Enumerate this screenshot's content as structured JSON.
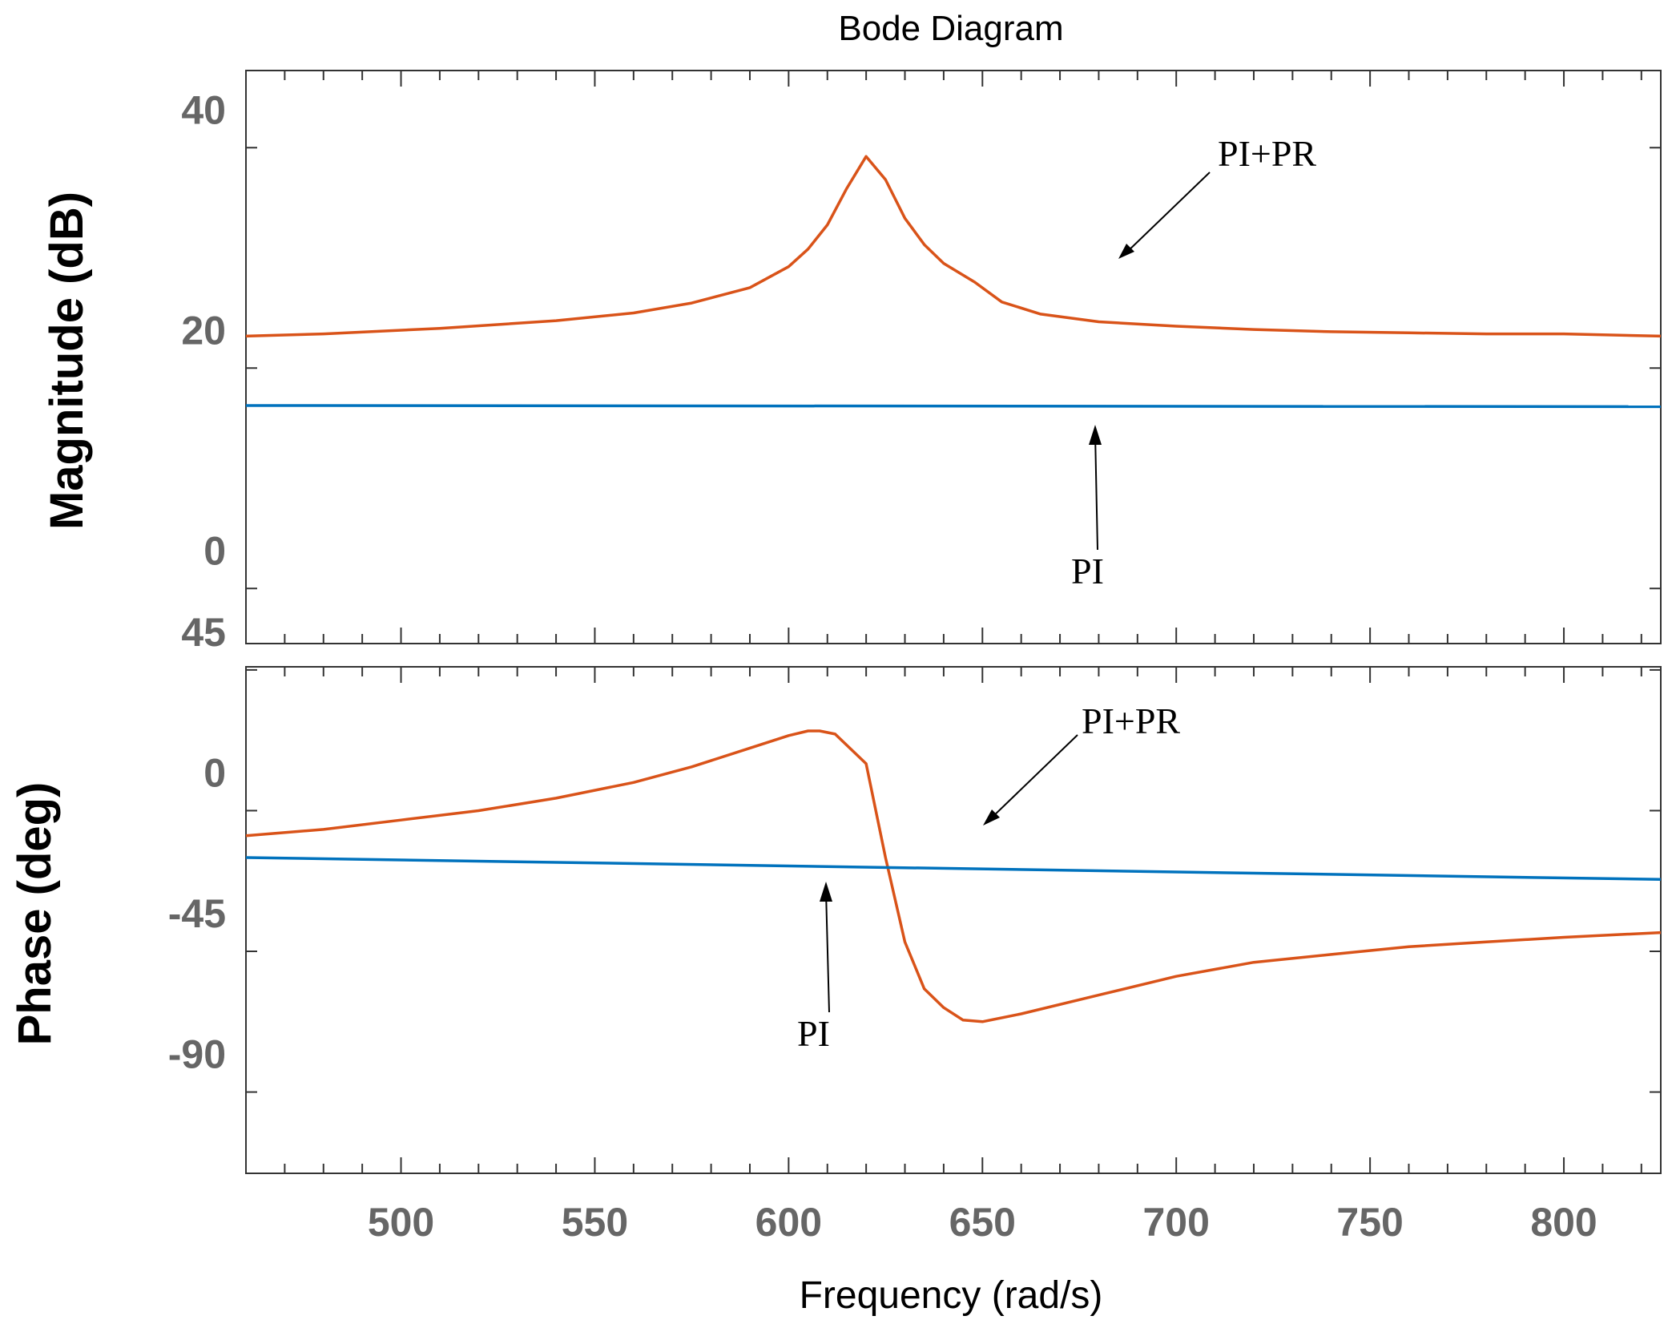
{
  "chart_data": [
    {
      "type": "line",
      "title": "Bode Diagram",
      "ylabel": "Magnitude (dB)",
      "xlim": [
        460,
        825
      ],
      "ylim": [
        -5,
        47
      ],
      "yticks": [
        0,
        20,
        40
      ],
      "series": [
        {
          "name": "PI+PR",
          "color": "#d95319",
          "x": [
            460,
            480,
            510,
            540,
            560,
            575,
            590,
            600,
            605,
            610,
            615,
            620,
            625,
            630,
            635,
            640,
            648,
            655,
            665,
            680,
            700,
            720,
            740,
            760,
            780,
            800,
            825
          ],
          "y": [
            22.9,
            23.1,
            23.6,
            24.3,
            25.0,
            25.9,
            27.3,
            29.2,
            30.8,
            33.0,
            36.3,
            39.2,
            37.1,
            33.6,
            31.2,
            29.5,
            27.8,
            26.0,
            24.9,
            24.2,
            23.8,
            23.5,
            23.3,
            23.2,
            23.1,
            23.1,
            22.9
          ],
          "label": "PI+PR"
        },
        {
          "name": "PI",
          "color": "#0072bd",
          "x": [
            460,
            825
          ],
          "y": [
            16.6,
            16.5
          ],
          "label": "PI"
        }
      ]
    },
    {
      "type": "line",
      "ylabel": "Phase (deg)",
      "xlabel": "Frequency (rad/s)",
      "xlim": [
        460,
        825
      ],
      "ylim": [
        -116,
        46
      ],
      "yticks": [
        -90,
        -45,
        0,
        45
      ],
      "xticks": [
        500,
        550,
        600,
        650,
        700,
        750,
        800
      ],
      "series": [
        {
          "name": "PI+PR",
          "color": "#d95319",
          "x": [
            460,
            480,
            500,
            520,
            540,
            560,
            575,
            590,
            600,
            605,
            608,
            612,
            620,
            625,
            630,
            635,
            640,
            645,
            650,
            660,
            680,
            700,
            720,
            740,
            760,
            780,
            800,
            825
          ],
          "y": [
            -8,
            -6,
            -3,
            0,
            4,
            9,
            14,
            20,
            24,
            25.5,
            25.5,
            24.5,
            15,
            -15,
            -42,
            -57,
            -63,
            -67,
            -67.5,
            -65,
            -59,
            -53,
            -48.5,
            -46,
            -43.5,
            -42,
            -40.5,
            -39
          ],
          "label": "PI+PR"
        },
        {
          "name": "PI",
          "color": "#0072bd",
          "x": [
            460,
            825
          ],
          "y": [
            -15,
            -22
          ],
          "label": "PI"
        }
      ]
    }
  ]
}
